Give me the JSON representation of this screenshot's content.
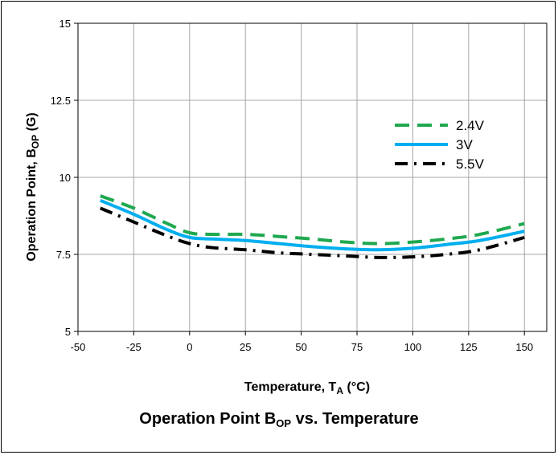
{
  "chart_data": {
    "type": "line",
    "title_main": "Operation Point B",
    "title_sub": "OP",
    "title_tail": " vs. Temperature",
    "xlabel_main": "Temperature, T",
    "xlabel_sub": "A",
    "xlabel_tail": " (°C)",
    "ylabel_main": "Operation Point, B",
    "ylabel_sub": "OP",
    "ylabel_tail": " (G)",
    "xlim": [
      -50,
      160
    ],
    "ylim": [
      5,
      15
    ],
    "x_ticks": [
      -50,
      -25,
      0,
      25,
      50,
      75,
      100,
      125,
      150
    ],
    "x_tick_labels": [
      "-50",
      "-25",
      "0",
      "25",
      "50",
      "75",
      "100",
      "125",
      "150"
    ],
    "y_ticks": [
      5,
      7.5,
      10,
      12.5,
      15
    ],
    "y_tick_labels": [
      "5",
      "7.5",
      "10",
      "12.5",
      "15"
    ],
    "grid": true,
    "legend_position": "top-right",
    "series": [
      {
        "name": "2.4V",
        "color": "#1fa84f",
        "dash": "dashed",
        "x": [
          -40,
          -25,
          -10,
          0,
          10,
          25,
          40,
          55,
          70,
          85,
          100,
          115,
          130,
          150
        ],
        "y": [
          9.4,
          9.0,
          8.5,
          8.2,
          8.15,
          8.15,
          8.08,
          8.0,
          7.9,
          7.85,
          7.9,
          8.0,
          8.15,
          8.5
        ]
      },
      {
        "name": "3V",
        "color": "#00aeef",
        "dash": "solid",
        "x": [
          -40,
          -25,
          -10,
          0,
          10,
          25,
          40,
          55,
          70,
          85,
          100,
          115,
          130,
          150
        ],
        "y": [
          9.25,
          8.8,
          8.3,
          8.05,
          8.0,
          7.95,
          7.85,
          7.75,
          7.68,
          7.65,
          7.7,
          7.82,
          7.95,
          8.25
        ]
      },
      {
        "name": "5.5V",
        "color": "#000000",
        "dash": "dashdot",
        "x": [
          -40,
          -25,
          -10,
          0,
          10,
          25,
          40,
          55,
          70,
          85,
          100,
          115,
          130,
          150
        ],
        "y": [
          9.0,
          8.55,
          8.1,
          7.85,
          7.72,
          7.65,
          7.55,
          7.5,
          7.45,
          7.4,
          7.42,
          7.5,
          7.65,
          8.05
        ]
      }
    ]
  }
}
